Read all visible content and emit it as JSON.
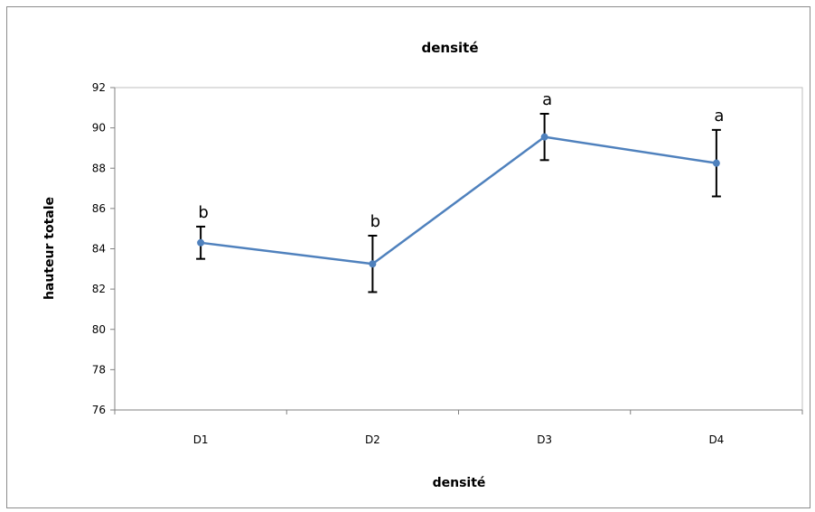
{
  "chart_data": {
    "type": "line",
    "title": "densité",
    "xlabel": "densité",
    "ylabel": "hauteur totale",
    "categories": [
      "D1",
      "D2",
      "D3",
      "D4"
    ],
    "series": [
      {
        "values": [
          84.3,
          83.25,
          89.55,
          88.25
        ],
        "error": [
          0.8,
          1.4,
          1.15,
          1.65
        ],
        "letters": [
          "b",
          "b",
          "a",
          "a"
        ],
        "color": "#4F81BD"
      }
    ],
    "ylim": [
      76,
      92
    ],
    "yticks": [
      "76",
      "78",
      "80",
      "82",
      "84",
      "86",
      "88",
      "90",
      "92"
    ],
    "grid": false,
    "legend": "none",
    "colors": {
      "line": "#4F81BD",
      "error_bar": "#000000",
      "axis": "#808080",
      "frame": "#8c8c8c"
    }
  }
}
